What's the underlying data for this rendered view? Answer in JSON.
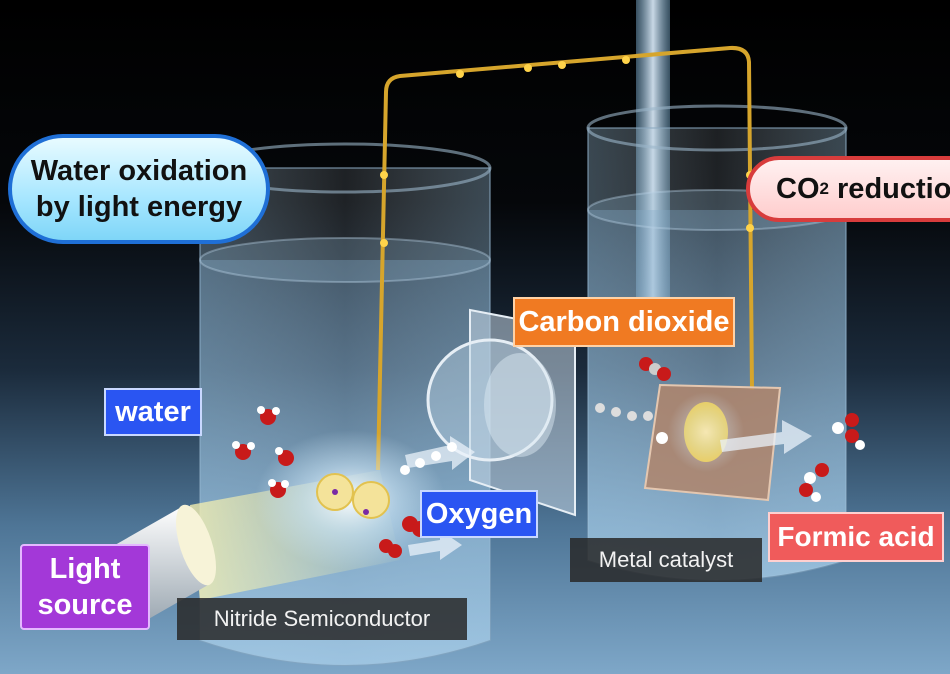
{
  "labels": {
    "water_oxidation": [
      "Water oxidation",
      "by light energy"
    ],
    "co2_reduction": {
      "prefix": "CO",
      "subscript": "2",
      "suffix": " reduction"
    },
    "carbon_dioxide": "Carbon dioxide",
    "water": "water",
    "oxygen": "Oxygen",
    "light_source": [
      "Light",
      "source"
    ],
    "formic_acid": "Formic acid",
    "metal_catalyst": "Metal catalyst",
    "nitride_semiconductor": "Nitride Semiconductor"
  },
  "colors": {
    "oxidation_pill": "#a6e6ff",
    "reduction_pill": "#ffcdcd",
    "carbon_dioxide_tag": "#f07a22",
    "water_oxygen_tag": "#2a55f2",
    "light_source_tag": "#a338d8",
    "formic_acid_tag": "#f05b5b",
    "wire": "#d6a52c",
    "oxygen_atom": "#c81a1a",
    "hydrogen_atom": "#ffffff"
  }
}
